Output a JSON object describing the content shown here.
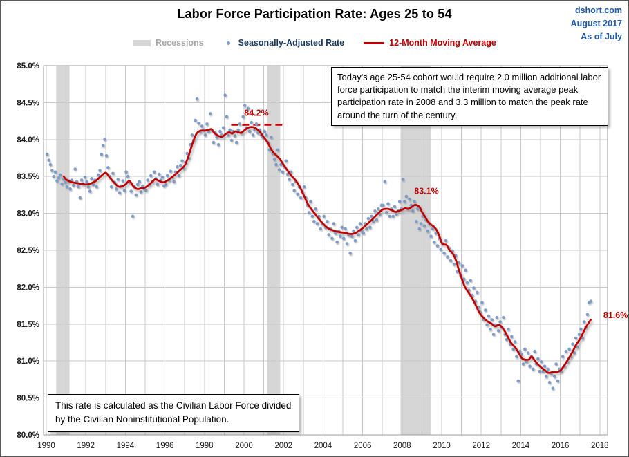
{
  "figure": {
    "title": "Labor Force Participation Rate: Ages 25 to 54",
    "source": {
      "site": "dshort.com",
      "date": "August 2017",
      "as_of": "As of July"
    },
    "legend": {
      "recessions": "Recessions",
      "scatter": "Seasonally-Adjusted Rate",
      "line": "12-Month Moving Average"
    },
    "annotations": {
      "note_top": "Today's age 25-54  cohort would require 2.0 million additional labor force participation to match the interim moving average peak participation rate in 2008  and 3.3  million to match the peak rate around the turn of the century.",
      "note_bottom": "This rate is calculated as the Civilian Labor Force divided by the Civilian Noninstitutional Population."
    },
    "colors": {
      "red": "#C00000",
      "dot_blue": "#7E9CC8",
      "navy_text": "#17375E",
      "legend_gray_text": "#A6A6A6",
      "band_gray": "#D6D6D6",
      "grid_gray": "#C8C8C8",
      "plot_border": "#9C9C9C",
      "source_blue": "#1F5AA8",
      "axis_text": "#1A1A1A"
    }
  },
  "chart_data": {
    "type": "scatter+line",
    "title": "Labor Force Participation Rate: Ages 25 to 54",
    "x_axis": {
      "range": [
        1990,
        2018.6
      ],
      "gridline_step": 1,
      "tick_labels": [
        1990,
        1992,
        1994,
        1996,
        1998,
        2000,
        2002,
        2004,
        2006,
        2008,
        2010,
        2012,
        2014,
        2016,
        2018
      ]
    },
    "y_axis": {
      "range": [
        80.0,
        85.0
      ],
      "tick_values": [
        85.0,
        84.5,
        84.0,
        83.5,
        83.0,
        82.5,
        82.0,
        81.5,
        81.0,
        80.5,
        80.0
      ],
      "tick_labels": [
        "85.0%",
        "84.5%",
        "84.0%",
        "83.5%",
        "83.0%",
        "82.5%",
        "82.0%",
        "81.5%",
        "81.0%",
        "80.5%",
        "80.0%"
      ]
    },
    "recessions": [
      [
        1990.5,
        1991.17
      ],
      [
        2001.17,
        2001.83
      ],
      [
        2007.92,
        2009.46
      ]
    ],
    "dashed_peak_line": {
      "value": 84.2,
      "from": 1999.35,
      "to": 2002.0
    },
    "annotations": [
      {
        "text": "84.2%",
        "x": 2000.63,
        "y": 84.36,
        "anchor": "middle"
      },
      {
        "text": "83.1%",
        "x": 2009.23,
        "y": 83.3,
        "anchor": "middle"
      },
      {
        "text": "81.6%",
        "x": 2018.18,
        "y": 81.62,
        "anchor": "start"
      }
    ],
    "series": {
      "moving_average": {
        "name": "12-Month Moving Average",
        "points": [
          [
            1990.88,
            83.5
          ],
          [
            1991.0,
            83.46
          ],
          [
            1991.2,
            83.43
          ],
          [
            1991.5,
            83.41
          ],
          [
            1991.8,
            83.4
          ],
          [
            1992.0,
            83.39
          ],
          [
            1992.3,
            83.41
          ],
          [
            1992.5,
            83.44
          ],
          [
            1992.75,
            83.5
          ],
          [
            1993.0,
            83.55
          ],
          [
            1993.2,
            83.49
          ],
          [
            1993.45,
            83.41
          ],
          [
            1993.7,
            83.36
          ],
          [
            1994.0,
            83.39
          ],
          [
            1994.2,
            83.44
          ],
          [
            1994.4,
            83.37
          ],
          [
            1994.6,
            83.33
          ],
          [
            1994.8,
            83.34
          ],
          [
            1995.0,
            83.35
          ],
          [
            1995.25,
            83.4
          ],
          [
            1995.5,
            83.46
          ],
          [
            1995.7,
            83.44
          ],
          [
            1995.9,
            83.42
          ],
          [
            1996.1,
            83.44
          ],
          [
            1996.4,
            83.5
          ],
          [
            1996.7,
            83.57
          ],
          [
            1997.0,
            83.65
          ],
          [
            1997.2,
            83.78
          ],
          [
            1997.4,
            83.95
          ],
          [
            1997.6,
            84.08
          ],
          [
            1997.8,
            84.12
          ],
          [
            1998.0,
            84.12
          ],
          [
            1998.2,
            84.13
          ],
          [
            1998.35,
            84.14
          ],
          [
            1998.5,
            84.09
          ],
          [
            1998.7,
            84.05
          ],
          [
            1998.9,
            84.04
          ],
          [
            1999.1,
            84.08
          ],
          [
            1999.25,
            84.1
          ],
          [
            1999.4,
            84.08
          ],
          [
            1999.55,
            84.11
          ],
          [
            1999.7,
            84.1
          ],
          [
            1999.85,
            84.09
          ],
          [
            2000.0,
            84.12
          ],
          [
            2000.2,
            84.16
          ],
          [
            2000.4,
            84.17
          ],
          [
            2000.55,
            84.16
          ],
          [
            2000.7,
            84.13
          ],
          [
            2000.85,
            84.09
          ],
          [
            2001.0,
            84.03
          ],
          [
            2001.2,
            83.96
          ],
          [
            2001.35,
            83.88
          ],
          [
            2001.5,
            83.82
          ],
          [
            2001.7,
            83.77
          ],
          [
            2001.85,
            83.72
          ],
          [
            2002.0,
            83.66
          ],
          [
            2002.2,
            83.58
          ],
          [
            2002.4,
            83.51
          ],
          [
            2002.6,
            83.45
          ],
          [
            2002.8,
            83.37
          ],
          [
            2003.0,
            83.26
          ],
          [
            2003.2,
            83.14
          ],
          [
            2003.4,
            83.06
          ],
          [
            2003.6,
            82.99
          ],
          [
            2003.8,
            82.92
          ],
          [
            2004.0,
            82.86
          ],
          [
            2004.25,
            82.8
          ],
          [
            2004.5,
            82.77
          ],
          [
            2004.75,
            82.75
          ],
          [
            2005.0,
            82.74
          ],
          [
            2005.2,
            82.73
          ],
          [
            2005.4,
            82.72
          ],
          [
            2005.6,
            82.73
          ],
          [
            2005.8,
            82.76
          ],
          [
            2006.0,
            82.8
          ],
          [
            2006.25,
            82.86
          ],
          [
            2006.5,
            82.92
          ],
          [
            2006.75,
            82.99
          ],
          [
            2007.0,
            83.05
          ],
          [
            2007.15,
            83.06
          ],
          [
            2007.3,
            83.06
          ],
          [
            2007.5,
            83.04
          ],
          [
            2007.65,
            83.02
          ],
          [
            2007.8,
            83.03
          ],
          [
            2008.0,
            83.05
          ],
          [
            2008.15,
            83.07
          ],
          [
            2008.3,
            83.06
          ],
          [
            2008.45,
            83.08
          ],
          [
            2008.6,
            83.11
          ],
          [
            2008.75,
            83.11
          ],
          [
            2008.9,
            83.08
          ],
          [
            2009.0,
            83.02
          ],
          [
            2009.15,
            82.96
          ],
          [
            2009.3,
            82.89
          ],
          [
            2009.45,
            82.85
          ],
          [
            2009.6,
            82.82
          ],
          [
            2009.75,
            82.77
          ],
          [
            2009.9,
            82.68
          ],
          [
            2010.0,
            82.6
          ],
          [
            2010.1,
            82.58
          ],
          [
            2010.25,
            82.57
          ],
          [
            2010.4,
            82.5
          ],
          [
            2010.55,
            82.46
          ],
          [
            2010.7,
            82.38
          ],
          [
            2010.85,
            82.25
          ],
          [
            2011.0,
            82.13
          ],
          [
            2011.15,
            82.02
          ],
          [
            2011.3,
            81.95
          ],
          [
            2011.5,
            81.87
          ],
          [
            2011.7,
            81.77
          ],
          [
            2011.9,
            81.66
          ],
          [
            2012.1,
            81.59
          ],
          [
            2012.3,
            81.54
          ],
          [
            2012.5,
            81.51
          ],
          [
            2012.7,
            81.47
          ],
          [
            2012.9,
            81.49
          ],
          [
            2013.1,
            81.44
          ],
          [
            2013.3,
            81.35
          ],
          [
            2013.5,
            81.25
          ],
          [
            2013.7,
            81.19
          ],
          [
            2013.9,
            81.11
          ],
          [
            2014.05,
            81.04
          ],
          [
            2014.2,
            81.02
          ],
          [
            2014.4,
            81.02
          ],
          [
            2014.55,
            81.06
          ],
          [
            2014.7,
            81.01
          ],
          [
            2014.85,
            80.96
          ],
          [
            2015.0,
            80.92
          ],
          [
            2015.2,
            80.88
          ],
          [
            2015.4,
            80.84
          ],
          [
            2015.6,
            80.85
          ],
          [
            2015.8,
            80.85
          ],
          [
            2016.0,
            80.87
          ],
          [
            2016.15,
            80.92
          ],
          [
            2016.3,
            80.98
          ],
          [
            2016.5,
            81.07
          ],
          [
            2016.65,
            81.14
          ],
          [
            2016.8,
            81.22
          ],
          [
            2017.0,
            81.3
          ],
          [
            2017.15,
            81.38
          ],
          [
            2017.3,
            81.46
          ],
          [
            2017.42,
            81.51
          ],
          [
            2017.54,
            81.56
          ]
        ]
      },
      "scatter": {
        "name": "Seasonally-Adjusted Rate",
        "monthly": {
          "1990": [
            83.8,
            83.72,
            83.66,
            83.58,
            83.5,
            83.56,
            83.44,
            83.48,
            83.52,
            83.4,
            83.46,
            83.42
          ],
          "1991": [
            83.36,
            83.44,
            83.33,
            83.45,
            83.38,
            83.6,
            83.43,
            83.36,
            83.21,
            83.45,
            83.4,
            83.49
          ],
          "1992": [
            83.43,
            83.36,
            83.3,
            83.47,
            83.39,
            83.45,
            83.36,
            83.52,
            83.58,
            83.8,
            83.92,
            84.0
          ],
          "1993": [
            83.78,
            83.62,
            83.5,
            83.36,
            83.54,
            83.42,
            83.33,
            83.46,
            83.28,
            83.37,
            83.44,
            83.31
          ],
          "1994": [
            83.56,
            83.5,
            83.42,
            83.3,
            82.96,
            83.36,
            83.25,
            83.39,
            83.43,
            83.29,
            83.37,
            83.33
          ],
          "1995": [
            83.31,
            83.45,
            83.39,
            83.51,
            83.43,
            83.56,
            83.47,
            83.39,
            83.53,
            83.45,
            83.49,
            83.37
          ],
          "1996": [
            83.39,
            83.51,
            83.45,
            83.57,
            83.49,
            83.43,
            83.56,
            83.63,
            83.51,
            83.65,
            83.71,
            83.61
          ],
          "1997": [
            83.69,
            83.81,
            83.75,
            83.93,
            84.06,
            83.99,
            84.26,
            84.55,
            84.22,
            84.11,
            84.18,
            84.13
          ],
          "1998": [
            84.06,
            84.21,
            84.11,
            84.35,
            84.13,
            83.96,
            84.09,
            84.03,
            83.93,
            84.11,
            84.06,
            84.16
          ],
          "1999": [
            84.6,
            84.31,
            84.06,
            84.13,
            83.99,
            84.11,
            84.05,
            83.96,
            84.13,
            84.21,
            84.09,
            84.31
          ],
          "2000": [
            84.46,
            84.16,
            84.42,
            84.11,
            84.23,
            84.06,
            84.13,
            84.21,
            84.09,
            84.13,
            84.06,
            84.03
          ],
          "2001": [
            84.11,
            84.06,
            83.96,
            83.86,
            84.03,
            83.81,
            83.73,
            83.66,
            83.86,
            83.59,
            83.66,
            83.56
          ],
          "2002": [
            83.63,
            83.71,
            83.53,
            83.46,
            83.56,
            83.39,
            83.31,
            83.43,
            83.26,
            83.36,
            83.21,
            83.29
          ],
          "2003": [
            83.36,
            83.21,
            83.11,
            83.01,
            83.16,
            82.96,
            82.89,
            83.06,
            82.86,
            82.96,
            82.79,
            82.86
          ],
          "2004": [
            82.96,
            82.81,
            82.89,
            82.71,
            82.79,
            82.66,
            82.86,
            82.73,
            82.61,
            82.76,
            82.69,
            82.81
          ],
          "2005": [
            82.66,
            82.79,
            82.59,
            82.71,
            82.46,
            82.69,
            82.76,
            82.63,
            82.81,
            82.71,
            82.86,
            82.76
          ],
          "2006": [
            82.73,
            82.86,
            82.79,
            82.93,
            82.81,
            82.96,
            82.89,
            83.03,
            82.91,
            83.06,
            82.99,
            83.11
          ],
          "2007": [
            83.11,
            83.43,
            83.01,
            83.13,
            82.96,
            83.06,
            82.96,
            83.09,
            82.99,
            83.03,
            83.16,
            83.06
          ],
          "2008": [
            83.46,
            83.16,
            83.23,
            83.06,
            83.19,
            83.11,
            83.03,
            83.16,
            82.89,
            83.06,
            82.79,
            82.86
          ],
          "2009": [
            82.96,
            82.83,
            82.91,
            82.76,
            82.86,
            82.69,
            82.79,
            82.61,
            82.73,
            82.56,
            82.66,
            82.51
          ],
          "2010": [
            82.59,
            82.46,
            82.63,
            82.41,
            82.53,
            82.36,
            82.49,
            82.31,
            82.43,
            82.21,
            82.33,
            82.16
          ],
          "2011": [
            82.29,
            82.11,
            82.23,
            82.06,
            81.96,
            82.09,
            81.89,
            81.99,
            81.81,
            81.93,
            81.73,
            81.66
          ],
          "2012": [
            81.79,
            81.56,
            81.69,
            81.49,
            81.61,
            81.43,
            81.56,
            81.36,
            81.49,
            81.59,
            81.41,
            81.53
          ],
          "2013": [
            81.46,
            81.59,
            81.36,
            81.29,
            81.43,
            81.23,
            81.33,
            81.16,
            81.26,
            81.06,
            80.73,
            81.13
          ],
          "2014": [
            81.09,
            80.96,
            81.16,
            80.99,
            81.11,
            80.93,
            81.06,
            80.89,
            81.13,
            80.96,
            81.03,
            80.86
          ],
          "2015": [
            80.99,
            80.86,
            80.93,
            80.79,
            80.89,
            80.71,
            80.83,
            80.63,
            80.79,
            80.96,
            80.73,
            80.89
          ],
          "2016": [
            80.86,
            81.06,
            80.93,
            81.13,
            80.99,
            81.16,
            81.06,
            81.23,
            81.11,
            81.31,
            81.19,
            81.36
          ],
          "2017": [
            81.43,
            81.31,
            81.53,
            81.46,
            81.63,
            81.79,
            81.81
          ]
        }
      }
    }
  }
}
